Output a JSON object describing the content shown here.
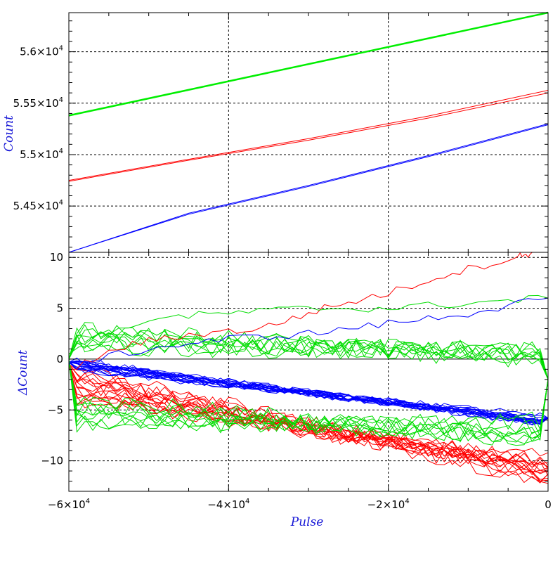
{
  "chart_data": [
    {
      "type": "line",
      "panel": "top",
      "ylabel": "Count",
      "xlim": [
        -60000,
        0
      ],
      "ylim": [
        54050,
        56380
      ],
      "grid": true,
      "y_ticks": [
        {
          "value": 54500,
          "mantissa": "5.45",
          "exp": "4"
        },
        {
          "value": 55000,
          "mantissa": "5.5",
          "exp": "4"
        },
        {
          "value": 55500,
          "mantissa": "5.55",
          "exp": "4"
        },
        {
          "value": 56000,
          "mantissa": "5.6",
          "exp": "4"
        }
      ],
      "x_ticks": [
        -40000,
        -20000
      ],
      "series": [
        {
          "color": "#00ee00",
          "width": 2.5,
          "x": [
            -60000,
            0
          ],
          "y": [
            55380,
            56380
          ]
        },
        {
          "color": "#ff0000",
          "width": 1,
          "x": [
            -60000,
            -45000,
            -30000,
            -15000,
            0
          ],
          "y": [
            54750,
            54955,
            55155,
            55375,
            55625
          ]
        },
        {
          "color": "#ff0000",
          "width": 1,
          "x": [
            -60000,
            -45000,
            -30000,
            -15000,
            0
          ],
          "y": [
            54740,
            54945,
            55140,
            55355,
            55600
          ]
        },
        {
          "color": "#0000ff",
          "width": 1,
          "x": [
            -60000,
            -45000,
            -30000,
            -15000,
            0
          ],
          "y": [
            54050,
            54430,
            54700,
            54990,
            55300
          ]
        },
        {
          "color": "#0000ff",
          "width": 1,
          "x": [
            -60000,
            -45000,
            -30000,
            -15000,
            0
          ],
          "y": [
            54050,
            54420,
            54690,
            54980,
            55290
          ]
        }
      ]
    },
    {
      "type": "line",
      "panel": "bottom",
      "xlabel": "Pulse",
      "ylabel": "ΔCount",
      "xlim": [
        -60000,
        0
      ],
      "ylim": [
        -13,
        10.5
      ],
      "grid": true,
      "zero_line": true,
      "y_ticks": [
        -10,
        -5,
        0,
        5,
        10
      ],
      "x_ticks": [
        {
          "value": -60000,
          "mantissa": "−6×10",
          "exp": "4"
        },
        {
          "value": -40000,
          "mantissa": "−4×10",
          "exp": "4"
        },
        {
          "value": -20000,
          "mantissa": "−2×10",
          "exp": "4"
        },
        {
          "value": 0,
          "mantissa": "0",
          "exp": ""
        }
      ],
      "series_groups": [
        {
          "color": "#00dd00",
          "count": 9,
          "level_start": [
            1.0,
            3.0
          ],
          "level_end": [
            -0.5,
            1.5
          ],
          "noise": 0.9,
          "start": 0
        },
        {
          "color": "#00dd00",
          "count": 9,
          "level_start": [
            -6.5,
            -4.0
          ],
          "level_end": [
            -8.5,
            -6.0
          ],
          "noise": 0.9,
          "start": 0
        },
        {
          "color": "#ff0000",
          "count": 16,
          "level_start": [
            -4.0,
            -1.0
          ],
          "level_end": [
            -12.5,
            -9.5
          ],
          "noise": 0.8,
          "start": -0.5
        },
        {
          "color": "#0000ff",
          "count": 18,
          "level_start": [
            -1.0,
            0.0
          ],
          "level_end": [
            -6.8,
            -5.6
          ],
          "noise": 0.35,
          "start": -0.3
        }
      ],
      "outliers": [
        {
          "color": "#ff0000",
          "x": [
            -60000,
            -52000,
            -44000,
            -36000,
            -28000,
            -20000,
            -12000,
            -4000,
            -2000
          ],
          "y": [
            -1.0,
            1.5,
            2.5,
            3.0,
            5.0,
            6.5,
            8.5,
            10.0,
            10.5
          ]
        },
        {
          "color": "#00dd00",
          "x": [
            -60000,
            -50000,
            -40000,
            -30000,
            -20000,
            -10000,
            0
          ],
          "y": [
            0.5,
            4.0,
            4.5,
            5.0,
            5.0,
            5.5,
            6.0
          ]
        },
        {
          "color": "#0000ff",
          "x": [
            -60000,
            -50000,
            -40000,
            -30000,
            -20000,
            -10000,
            0
          ],
          "y": [
            -0.5,
            1.0,
            2.0,
            2.5,
            3.5,
            4.5,
            6.0
          ]
        }
      ]
    }
  ]
}
